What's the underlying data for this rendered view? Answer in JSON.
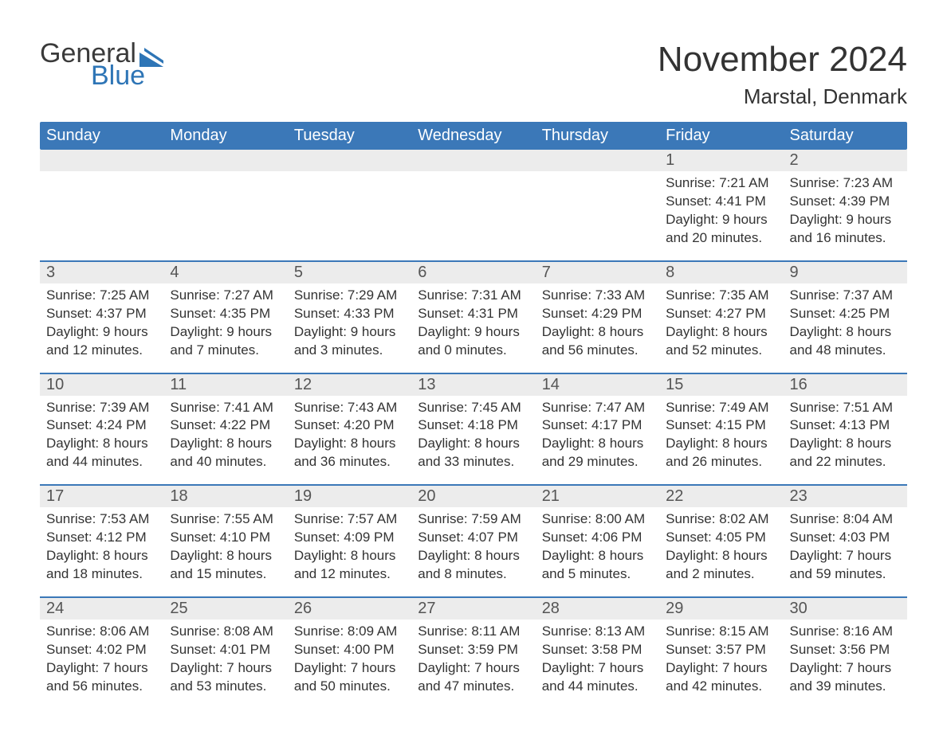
{
  "logo": {
    "word1": "General",
    "word2": "Blue",
    "flag_color": "#2e75b6",
    "text_color": "#3a3a3a"
  },
  "title": "November 2024",
  "location": "Marstal, Denmark",
  "colors": {
    "header_bg": "#3b78b8",
    "header_text": "#ffffff",
    "daynum_band_bg": "#ececec",
    "week_border": "#3b78b8",
    "body_text": "#333333",
    "daynum_text": "#555555",
    "page_bg": "#ffffff"
  },
  "fonts": {
    "title_size_pt": 33,
    "location_size_pt": 20,
    "header_size_pt": 15,
    "daynum_size_pt": 15,
    "info_size_pt": 13
  },
  "day_headers": [
    "Sunday",
    "Monday",
    "Tuesday",
    "Wednesday",
    "Thursday",
    "Friday",
    "Saturday"
  ],
  "weeks": [
    [
      {
        "empty": true
      },
      {
        "empty": true
      },
      {
        "empty": true
      },
      {
        "empty": true
      },
      {
        "empty": true
      },
      {
        "num": "1",
        "sunrise": "Sunrise: 7:21 AM",
        "sunset": "Sunset: 4:41 PM",
        "day1": "Daylight: 9 hours",
        "day2": "and 20 minutes."
      },
      {
        "num": "2",
        "sunrise": "Sunrise: 7:23 AM",
        "sunset": "Sunset: 4:39 PM",
        "day1": "Daylight: 9 hours",
        "day2": "and 16 minutes."
      }
    ],
    [
      {
        "num": "3",
        "sunrise": "Sunrise: 7:25 AM",
        "sunset": "Sunset: 4:37 PM",
        "day1": "Daylight: 9 hours",
        "day2": "and 12 minutes."
      },
      {
        "num": "4",
        "sunrise": "Sunrise: 7:27 AM",
        "sunset": "Sunset: 4:35 PM",
        "day1": "Daylight: 9 hours",
        "day2": "and 7 minutes."
      },
      {
        "num": "5",
        "sunrise": "Sunrise: 7:29 AM",
        "sunset": "Sunset: 4:33 PM",
        "day1": "Daylight: 9 hours",
        "day2": "and 3 minutes."
      },
      {
        "num": "6",
        "sunrise": "Sunrise: 7:31 AM",
        "sunset": "Sunset: 4:31 PM",
        "day1": "Daylight: 9 hours",
        "day2": "and 0 minutes."
      },
      {
        "num": "7",
        "sunrise": "Sunrise: 7:33 AM",
        "sunset": "Sunset: 4:29 PM",
        "day1": "Daylight: 8 hours",
        "day2": "and 56 minutes."
      },
      {
        "num": "8",
        "sunrise": "Sunrise: 7:35 AM",
        "sunset": "Sunset: 4:27 PM",
        "day1": "Daylight: 8 hours",
        "day2": "and 52 minutes."
      },
      {
        "num": "9",
        "sunrise": "Sunrise: 7:37 AM",
        "sunset": "Sunset: 4:25 PM",
        "day1": "Daylight: 8 hours",
        "day2": "and 48 minutes."
      }
    ],
    [
      {
        "num": "10",
        "sunrise": "Sunrise: 7:39 AM",
        "sunset": "Sunset: 4:24 PM",
        "day1": "Daylight: 8 hours",
        "day2": "and 44 minutes."
      },
      {
        "num": "11",
        "sunrise": "Sunrise: 7:41 AM",
        "sunset": "Sunset: 4:22 PM",
        "day1": "Daylight: 8 hours",
        "day2": "and 40 minutes."
      },
      {
        "num": "12",
        "sunrise": "Sunrise: 7:43 AM",
        "sunset": "Sunset: 4:20 PM",
        "day1": "Daylight: 8 hours",
        "day2": "and 36 minutes."
      },
      {
        "num": "13",
        "sunrise": "Sunrise: 7:45 AM",
        "sunset": "Sunset: 4:18 PM",
        "day1": "Daylight: 8 hours",
        "day2": "and 33 minutes."
      },
      {
        "num": "14",
        "sunrise": "Sunrise: 7:47 AM",
        "sunset": "Sunset: 4:17 PM",
        "day1": "Daylight: 8 hours",
        "day2": "and 29 minutes."
      },
      {
        "num": "15",
        "sunrise": "Sunrise: 7:49 AM",
        "sunset": "Sunset: 4:15 PM",
        "day1": "Daylight: 8 hours",
        "day2": "and 26 minutes."
      },
      {
        "num": "16",
        "sunrise": "Sunrise: 7:51 AM",
        "sunset": "Sunset: 4:13 PM",
        "day1": "Daylight: 8 hours",
        "day2": "and 22 minutes."
      }
    ],
    [
      {
        "num": "17",
        "sunrise": "Sunrise: 7:53 AM",
        "sunset": "Sunset: 4:12 PM",
        "day1": "Daylight: 8 hours",
        "day2": "and 18 minutes."
      },
      {
        "num": "18",
        "sunrise": "Sunrise: 7:55 AM",
        "sunset": "Sunset: 4:10 PM",
        "day1": "Daylight: 8 hours",
        "day2": "and 15 minutes."
      },
      {
        "num": "19",
        "sunrise": "Sunrise: 7:57 AM",
        "sunset": "Sunset: 4:09 PM",
        "day1": "Daylight: 8 hours",
        "day2": "and 12 minutes."
      },
      {
        "num": "20",
        "sunrise": "Sunrise: 7:59 AM",
        "sunset": "Sunset: 4:07 PM",
        "day1": "Daylight: 8 hours",
        "day2": "and 8 minutes."
      },
      {
        "num": "21",
        "sunrise": "Sunrise: 8:00 AM",
        "sunset": "Sunset: 4:06 PM",
        "day1": "Daylight: 8 hours",
        "day2": "and 5 minutes."
      },
      {
        "num": "22",
        "sunrise": "Sunrise: 8:02 AM",
        "sunset": "Sunset: 4:05 PM",
        "day1": "Daylight: 8 hours",
        "day2": "and 2 minutes."
      },
      {
        "num": "23",
        "sunrise": "Sunrise: 8:04 AM",
        "sunset": "Sunset: 4:03 PM",
        "day1": "Daylight: 7 hours",
        "day2": "and 59 minutes."
      }
    ],
    [
      {
        "num": "24",
        "sunrise": "Sunrise: 8:06 AM",
        "sunset": "Sunset: 4:02 PM",
        "day1": "Daylight: 7 hours",
        "day2": "and 56 minutes."
      },
      {
        "num": "25",
        "sunrise": "Sunrise: 8:08 AM",
        "sunset": "Sunset: 4:01 PM",
        "day1": "Daylight: 7 hours",
        "day2": "and 53 minutes."
      },
      {
        "num": "26",
        "sunrise": "Sunrise: 8:09 AM",
        "sunset": "Sunset: 4:00 PM",
        "day1": "Daylight: 7 hours",
        "day2": "and 50 minutes."
      },
      {
        "num": "27",
        "sunrise": "Sunrise: 8:11 AM",
        "sunset": "Sunset: 3:59 PM",
        "day1": "Daylight: 7 hours",
        "day2": "and 47 minutes."
      },
      {
        "num": "28",
        "sunrise": "Sunrise: 8:13 AM",
        "sunset": "Sunset: 3:58 PM",
        "day1": "Daylight: 7 hours",
        "day2": "and 44 minutes."
      },
      {
        "num": "29",
        "sunrise": "Sunrise: 8:15 AM",
        "sunset": "Sunset: 3:57 PM",
        "day1": "Daylight: 7 hours",
        "day2": "and 42 minutes."
      },
      {
        "num": "30",
        "sunrise": "Sunrise: 8:16 AM",
        "sunset": "Sunset: 3:56 PM",
        "day1": "Daylight: 7 hours",
        "day2": "and 39 minutes."
      }
    ]
  ]
}
